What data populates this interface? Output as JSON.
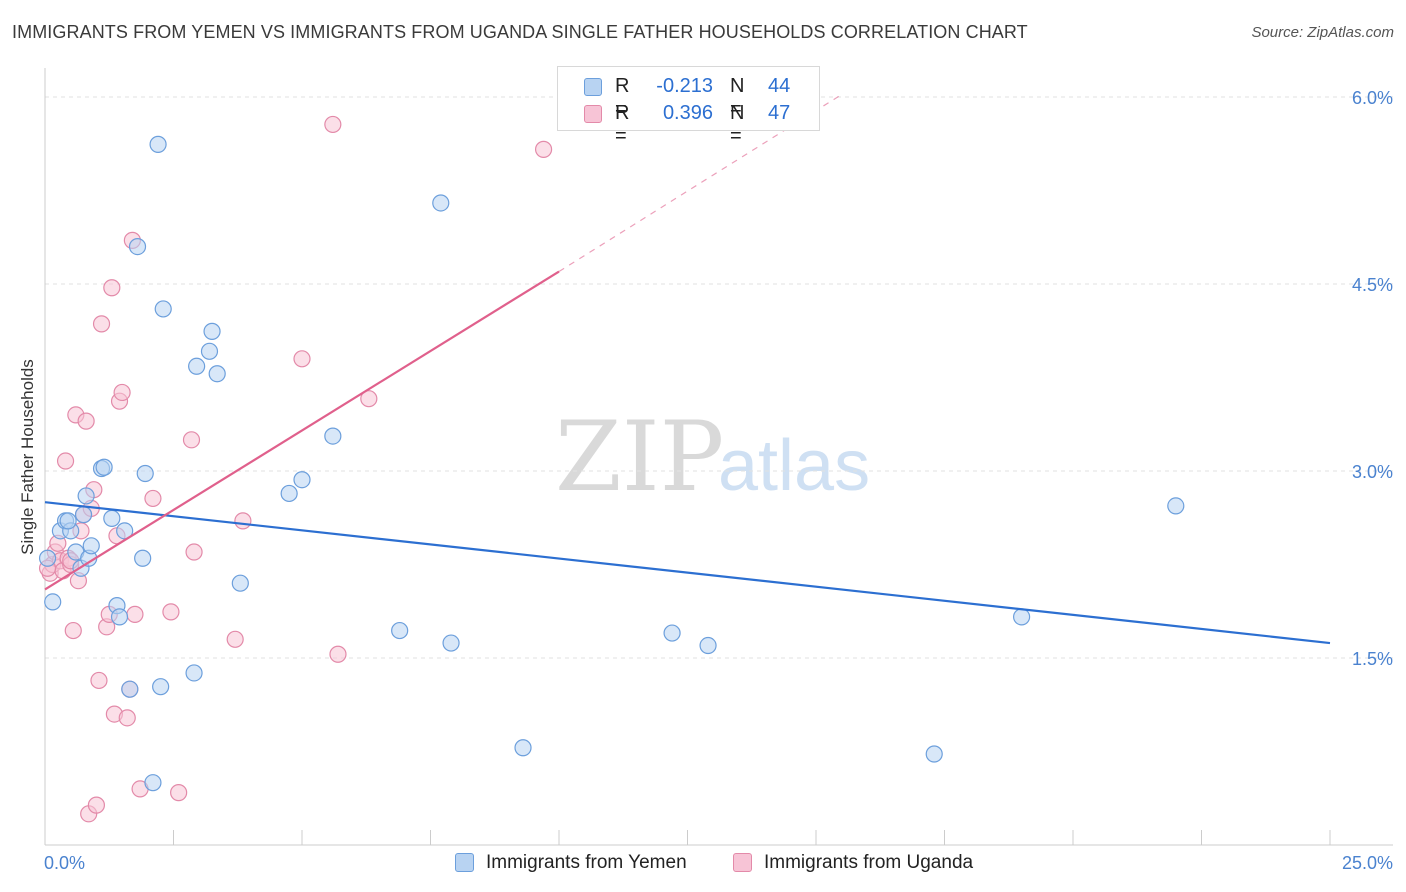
{
  "title": "IMMIGRANTS FROM YEMEN VS IMMIGRANTS FROM UGANDA SINGLE FATHER HOUSEHOLDS CORRELATION CHART",
  "source": "Source: ZipAtlas.com",
  "watermark": {
    "zip": "ZIP",
    "atlas": "atlas"
  },
  "colors": {
    "yemen_fill": "#b8d3f2",
    "yemen_stroke": "#6c9fdc",
    "yemen_line": "#2c6fd1",
    "uganda_fill": "#f7c4d6",
    "uganda_stroke": "#e38aa9",
    "uganda_line": "#e0608c",
    "grid": "#e2e2e2",
    "tick_label": "#4a82cf"
  },
  "legend": {
    "rows": [
      {
        "r_label": "R =",
        "r_value": "-0.213",
        "n_label": "N =",
        "n_value": "44"
      },
      {
        "r_label": "R =",
        "r_value": "0.396",
        "n_label": "N =",
        "n_value": "47"
      }
    ]
  },
  "chart_data": {
    "type": "scatter",
    "title": "IMMIGRANTS FROM YEMEN VS IMMIGRANTS FROM UGANDA SINGLE FATHER HOUSEHOLDS CORRELATION CHART",
    "xlabel": "",
    "ylabel": "Single Father Households",
    "xlim": [
      0,
      25
    ],
    "ylim": [
      0,
      6.0
    ],
    "x_tick_labels": [
      "0.0%",
      "25.0%"
    ],
    "y_ticks": [
      1.5,
      3.0,
      4.5,
      6.0
    ],
    "y_tick_labels": [
      "1.5%",
      "3.0%",
      "4.5%",
      "6.0%"
    ],
    "grid": true,
    "legend_position": "bottom",
    "series": [
      {
        "name": "Immigrants from Yemen",
        "r": -0.213,
        "n": 44,
        "trend": {
          "x0": 0.0,
          "y0": 2.75,
          "x1": 25.0,
          "y1": 1.62
        },
        "points": [
          [
            0.15,
            1.95
          ],
          [
            0.3,
            2.52
          ],
          [
            0.4,
            2.6
          ],
          [
            0.5,
            2.52
          ],
          [
            0.45,
            2.6
          ],
          [
            0.6,
            2.35
          ],
          [
            0.7,
            2.22
          ],
          [
            0.75,
            2.65
          ],
          [
            0.8,
            2.8
          ],
          [
            0.85,
            2.3
          ],
          [
            0.9,
            2.4
          ],
          [
            1.1,
            3.02
          ],
          [
            1.15,
            3.03
          ],
          [
            1.3,
            2.62
          ],
          [
            1.4,
            1.92
          ],
          [
            1.45,
            1.83
          ],
          [
            1.55,
            2.52
          ],
          [
            1.65,
            1.25
          ],
          [
            1.8,
            4.8
          ],
          [
            1.9,
            2.3
          ],
          [
            1.95,
            2.98
          ],
          [
            2.1,
            0.5
          ],
          [
            2.2,
            5.62
          ],
          [
            2.25,
            1.27
          ],
          [
            2.3,
            4.3
          ],
          [
            2.9,
            1.38
          ],
          [
            2.95,
            3.84
          ],
          [
            3.2,
            3.96
          ],
          [
            3.25,
            4.12
          ],
          [
            3.35,
            3.78
          ],
          [
            3.8,
            2.1
          ],
          [
            4.75,
            2.82
          ],
          [
            5.0,
            2.93
          ],
          [
            5.6,
            3.28
          ],
          [
            6.9,
            1.72
          ],
          [
            7.7,
            5.15
          ],
          [
            7.9,
            1.62
          ],
          [
            9.3,
            0.78
          ],
          [
            12.2,
            1.7
          ],
          [
            12.9,
            1.6
          ],
          [
            17.3,
            0.73
          ],
          [
            19.0,
            1.83
          ],
          [
            22.0,
            2.72
          ],
          [
            0.05,
            2.3
          ]
        ]
      },
      {
        "name": "Immigrants from Uganda",
        "r": 0.396,
        "n": 47,
        "trend": {
          "x0": 0.0,
          "y0": 2.05,
          "x1": 10.0,
          "y1": 4.6
        },
        "trend_dashed": {
          "x0": 10.0,
          "y0": 4.6,
          "x1": 15.5,
          "y1": 6.02
        },
        "points": [
          [
            0.1,
            2.18
          ],
          [
            0.15,
            2.25
          ],
          [
            0.2,
            2.35
          ],
          [
            0.25,
            2.42
          ],
          [
            0.3,
            2.28
          ],
          [
            0.35,
            2.2
          ],
          [
            0.45,
            2.3
          ],
          [
            0.5,
            2.25
          ],
          [
            0.55,
            1.72
          ],
          [
            0.6,
            3.45
          ],
          [
            0.65,
            2.12
          ],
          [
            0.7,
            2.52
          ],
          [
            0.75,
            2.65
          ],
          [
            0.8,
            3.4
          ],
          [
            0.85,
            0.25
          ],
          [
            0.9,
            2.7
          ],
          [
            0.95,
            2.85
          ],
          [
            1.0,
            0.32
          ],
          [
            1.05,
            1.32
          ],
          [
            1.1,
            4.18
          ],
          [
            1.2,
            1.75
          ],
          [
            1.25,
            1.85
          ],
          [
            1.3,
            4.47
          ],
          [
            1.35,
            1.05
          ],
          [
            1.4,
            2.48
          ],
          [
            1.45,
            3.56
          ],
          [
            1.5,
            3.63
          ],
          [
            1.6,
            1.02
          ],
          [
            1.65,
            1.25
          ],
          [
            1.7,
            4.85
          ],
          [
            1.75,
            1.85
          ],
          [
            1.85,
            0.45
          ],
          [
            2.1,
            2.78
          ],
          [
            2.45,
            1.87
          ],
          [
            2.6,
            0.42
          ],
          [
            2.85,
            3.25
          ],
          [
            2.9,
            2.35
          ],
          [
            3.7,
            1.65
          ],
          [
            3.85,
            2.6
          ],
          [
            5.0,
            3.9
          ],
          [
            5.6,
            5.78
          ],
          [
            5.7,
            1.53
          ],
          [
            6.3,
            3.58
          ],
          [
            9.7,
            5.58
          ],
          [
            0.4,
            3.08
          ],
          [
            0.5,
            2.28
          ],
          [
            0.05,
            2.22
          ]
        ]
      }
    ]
  },
  "bottom_legend": [
    {
      "label": "Immigrants from Yemen"
    },
    {
      "label": "Immigrants from Uganda"
    }
  ]
}
